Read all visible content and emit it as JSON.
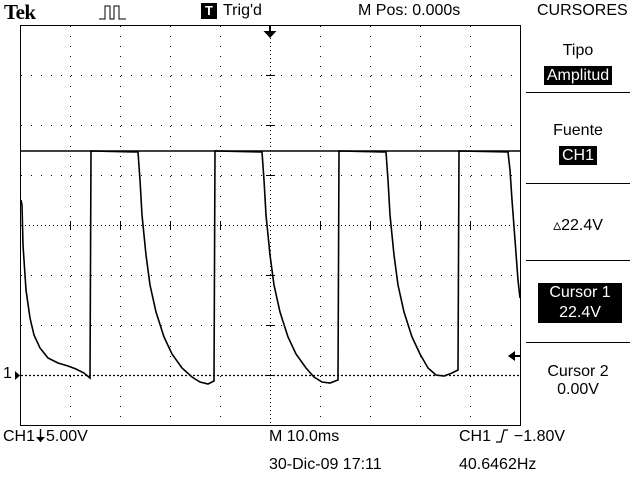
{
  "header": {
    "brand": "Tek",
    "acquisition_icon": "pulse-waveform-icon",
    "trigger_badge": "T",
    "trigger_status": "Trig'd",
    "horizontal_position": "M Pos: 0.000s",
    "menu_title": "CURSORES"
  },
  "side_menu": {
    "type_label": "Tipo",
    "type_value": "Amplitud",
    "source_label": "Fuente",
    "source_value": "CH1",
    "delta_voltage": "22.4V",
    "cursor1_label": "Cursor 1",
    "cursor1_value": "22.4V",
    "cursor2_label": "Cursor 2",
    "cursor2_value": "0.00V"
  },
  "screen": {
    "channel_marker": "1",
    "colors": {
      "background": "#ffffff",
      "trace": "#000000",
      "grid": "#000000"
    }
  },
  "footer": {
    "channel_scale": "CH1",
    "channel_scale_value": "5.00V",
    "time_scale": "M 10.0ms",
    "datetime": "30-Dic-09 17:11",
    "trigger_source": "CH1",
    "trigger_level": "−1.80V",
    "frequency": "40.6462Hz"
  }
}
